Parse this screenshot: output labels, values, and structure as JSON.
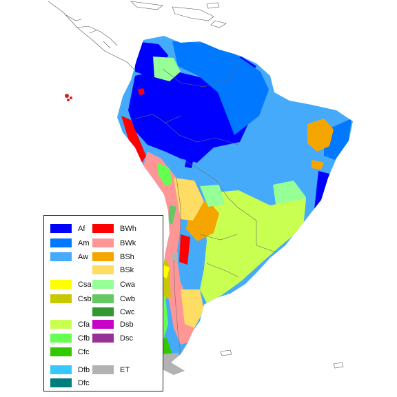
{
  "map": {
    "region": "South America",
    "legend_title": "",
    "classes": [
      {
        "code": "Af",
        "color": "#0000ff"
      },
      {
        "code": "Am",
        "color": "#0078ff"
      },
      {
        "code": "Aw",
        "color": "#46aafa"
      },
      {
        "code": "BWh",
        "color": "#ff0000"
      },
      {
        "code": "BWk",
        "color": "#ff9696"
      },
      {
        "code": "BSh",
        "color": "#f5a500"
      },
      {
        "code": "BSk",
        "color": "#ffdc64"
      },
      {
        "code": "Csa",
        "color": "#ffff00"
      },
      {
        "code": "Csb",
        "color": "#c8c800"
      },
      {
        "code": "Cwa",
        "color": "#96ff96"
      },
      {
        "code": "Cwb",
        "color": "#64c864"
      },
      {
        "code": "Cwc",
        "color": "#329632"
      },
      {
        "code": "Cfa",
        "color": "#c8ff50"
      },
      {
        "code": "Cfb",
        "color": "#64ff50"
      },
      {
        "code": "Cfc",
        "color": "#32c800"
      },
      {
        "code": "Dsb",
        "color": "#c800c8"
      },
      {
        "code": "Dsc",
        "color": "#963296"
      },
      {
        "code": "Dfb",
        "color": "#37c8ff"
      },
      {
        "code": "Dfc",
        "color": "#007d7d"
      },
      {
        "code": "ET",
        "color": "#b2b2b2"
      }
    ]
  }
}
